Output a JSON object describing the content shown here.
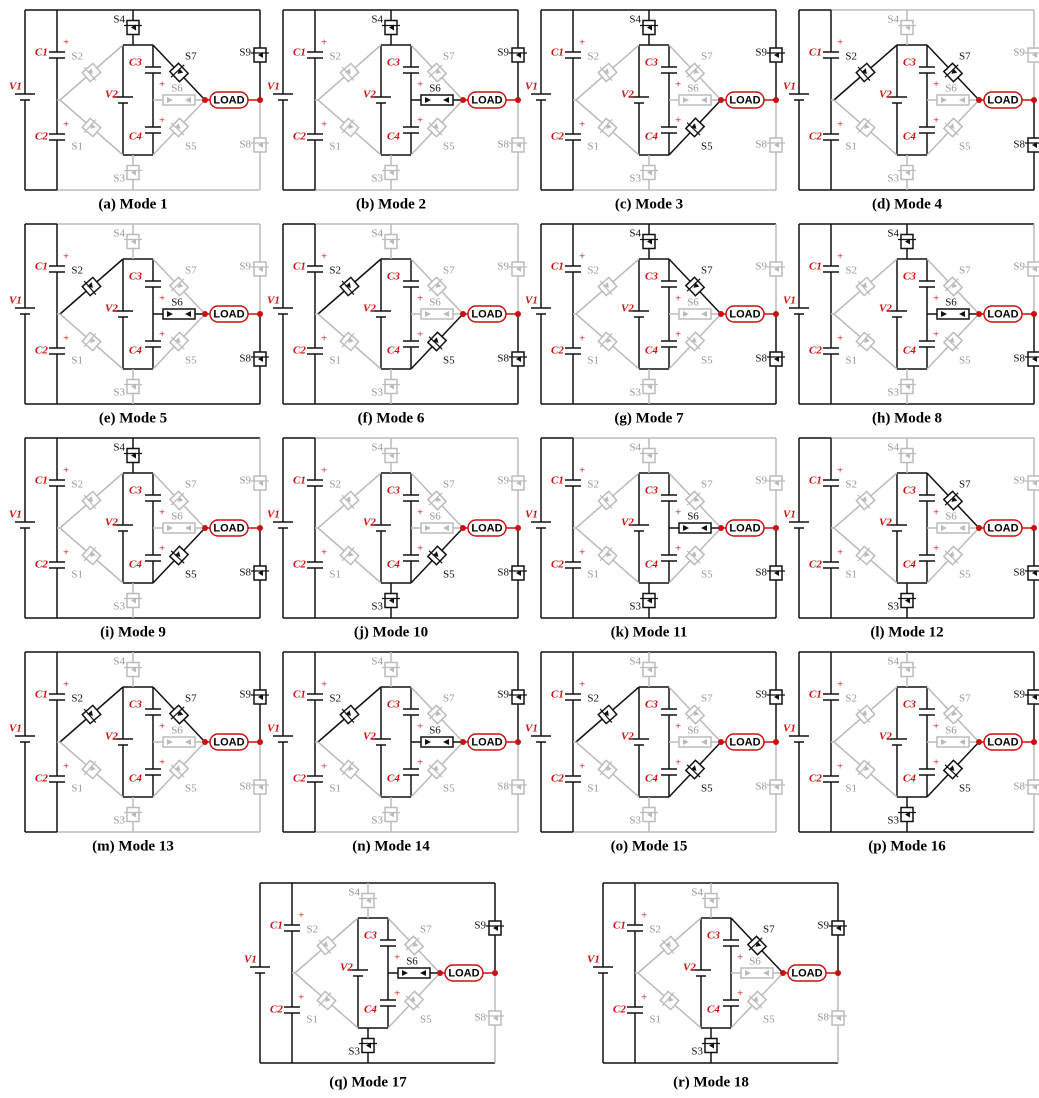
{
  "circuit": {
    "labels": {
      "V1": "V1",
      "C1": "C1",
      "C2": "C2",
      "V2": "V2",
      "C3": "C3",
      "C4": "C4",
      "S1": "S1",
      "S2": "S2",
      "S3": "S3",
      "S4": "S4",
      "S5": "S5",
      "S6": "S6",
      "S7": "S7",
      "S8": "S8",
      "S9": "S9",
      "load": "LOAD",
      "plus": "+"
    }
  },
  "panels": [
    {
      "caption": "(a) Mode 1",
      "active": [
        "S4",
        "S7",
        "S9"
      ]
    },
    {
      "caption": "(b) Mode 2",
      "active": [
        "S4",
        "S6",
        "S9"
      ]
    },
    {
      "caption": "(c) Mode 3",
      "active": [
        "S4",
        "S5",
        "S9"
      ]
    },
    {
      "caption": "(d) Mode 4",
      "active": [
        "S2",
        "S7",
        "S8"
      ]
    },
    {
      "caption": "(e) Mode 5",
      "active": [
        "S2",
        "S6",
        "S8"
      ]
    },
    {
      "caption": "(f) Mode 6",
      "active": [
        "S2",
        "S5",
        "S8"
      ]
    },
    {
      "caption": "(g) Mode 7",
      "active": [
        "S4",
        "S7",
        "S8"
      ]
    },
    {
      "caption": "(h) Mode 8",
      "active": [
        "S4",
        "S6",
        "S8"
      ]
    },
    {
      "caption": "(i) Mode 9",
      "active": [
        "S4",
        "S5",
        "S8"
      ]
    },
    {
      "caption": "(j) Mode 10",
      "active": [
        "S3",
        "S5",
        "S8"
      ]
    },
    {
      "caption": "(k) Mode 11",
      "active": [
        "S3",
        "S6",
        "S8"
      ]
    },
    {
      "caption": "(l) Mode 12",
      "active": [
        "S3",
        "S7",
        "S8"
      ]
    },
    {
      "caption": "(m) Mode 13",
      "active": [
        "S2",
        "S7",
        "S9"
      ]
    },
    {
      "caption": "(n) Mode 14",
      "active": [
        "S2",
        "S6",
        "S9"
      ]
    },
    {
      "caption": "(o) Mode 15",
      "active": [
        "S2",
        "S5",
        "S9"
      ]
    },
    {
      "caption": "(p) Mode 16",
      "active": [
        "S3",
        "S5",
        "S9"
      ]
    },
    {
      "caption": "(q) Mode 17",
      "active": [
        "S3",
        "S6",
        "S9"
      ]
    },
    {
      "caption": "(r) Mode 18",
      "active": [
        "S3",
        "S7",
        "S9"
      ]
    }
  ]
}
